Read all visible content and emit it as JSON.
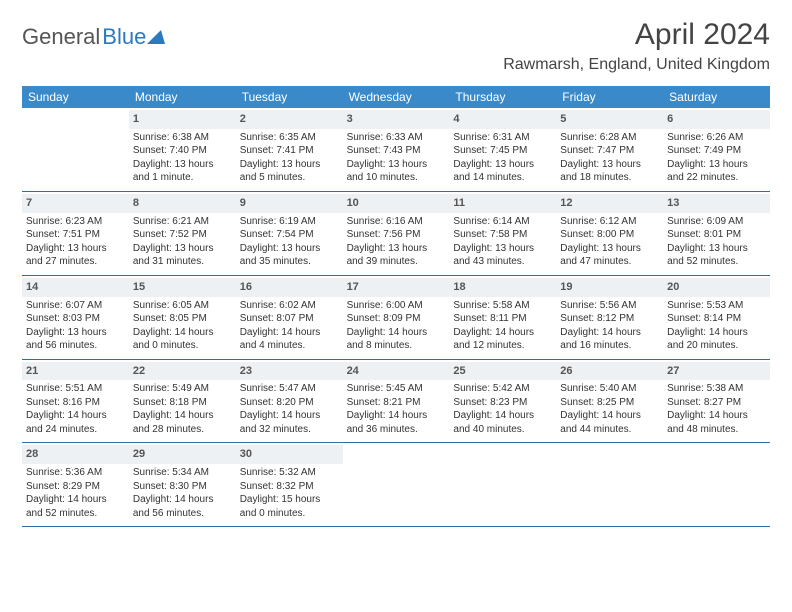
{
  "logo": {
    "word1": "General",
    "word2": "Blue"
  },
  "title": "April 2024",
  "location": "Rawmarsh, England, United Kingdom",
  "daynames": [
    "Sunday",
    "Monday",
    "Tuesday",
    "Wednesday",
    "Thursday",
    "Friday",
    "Saturday"
  ],
  "colors": {
    "header_bg": "#3a8ac9",
    "header_text": "#ffffff",
    "daynum_bg": "#eef1f3",
    "week_border": "#2f6da6",
    "logo_blue": "#2b7ac0"
  },
  "weeks": [
    [
      {
        "day": "",
        "sunrise": "",
        "sunset": "",
        "daylight": ""
      },
      {
        "day": "1",
        "sunrise": "Sunrise: 6:38 AM",
        "sunset": "Sunset: 7:40 PM",
        "daylight": "Daylight: 13 hours and 1 minute."
      },
      {
        "day": "2",
        "sunrise": "Sunrise: 6:35 AM",
        "sunset": "Sunset: 7:41 PM",
        "daylight": "Daylight: 13 hours and 5 minutes."
      },
      {
        "day": "3",
        "sunrise": "Sunrise: 6:33 AM",
        "sunset": "Sunset: 7:43 PM",
        "daylight": "Daylight: 13 hours and 10 minutes."
      },
      {
        "day": "4",
        "sunrise": "Sunrise: 6:31 AM",
        "sunset": "Sunset: 7:45 PM",
        "daylight": "Daylight: 13 hours and 14 minutes."
      },
      {
        "day": "5",
        "sunrise": "Sunrise: 6:28 AM",
        "sunset": "Sunset: 7:47 PM",
        "daylight": "Daylight: 13 hours and 18 minutes."
      },
      {
        "day": "6",
        "sunrise": "Sunrise: 6:26 AM",
        "sunset": "Sunset: 7:49 PM",
        "daylight": "Daylight: 13 hours and 22 minutes."
      }
    ],
    [
      {
        "day": "7",
        "sunrise": "Sunrise: 6:23 AM",
        "sunset": "Sunset: 7:51 PM",
        "daylight": "Daylight: 13 hours and 27 minutes."
      },
      {
        "day": "8",
        "sunrise": "Sunrise: 6:21 AM",
        "sunset": "Sunset: 7:52 PM",
        "daylight": "Daylight: 13 hours and 31 minutes."
      },
      {
        "day": "9",
        "sunrise": "Sunrise: 6:19 AM",
        "sunset": "Sunset: 7:54 PM",
        "daylight": "Daylight: 13 hours and 35 minutes."
      },
      {
        "day": "10",
        "sunrise": "Sunrise: 6:16 AM",
        "sunset": "Sunset: 7:56 PM",
        "daylight": "Daylight: 13 hours and 39 minutes."
      },
      {
        "day": "11",
        "sunrise": "Sunrise: 6:14 AM",
        "sunset": "Sunset: 7:58 PM",
        "daylight": "Daylight: 13 hours and 43 minutes."
      },
      {
        "day": "12",
        "sunrise": "Sunrise: 6:12 AM",
        "sunset": "Sunset: 8:00 PM",
        "daylight": "Daylight: 13 hours and 47 minutes."
      },
      {
        "day": "13",
        "sunrise": "Sunrise: 6:09 AM",
        "sunset": "Sunset: 8:01 PM",
        "daylight": "Daylight: 13 hours and 52 minutes."
      }
    ],
    [
      {
        "day": "14",
        "sunrise": "Sunrise: 6:07 AM",
        "sunset": "Sunset: 8:03 PM",
        "daylight": "Daylight: 13 hours and 56 minutes."
      },
      {
        "day": "15",
        "sunrise": "Sunrise: 6:05 AM",
        "sunset": "Sunset: 8:05 PM",
        "daylight": "Daylight: 14 hours and 0 minutes."
      },
      {
        "day": "16",
        "sunrise": "Sunrise: 6:02 AM",
        "sunset": "Sunset: 8:07 PM",
        "daylight": "Daylight: 14 hours and 4 minutes."
      },
      {
        "day": "17",
        "sunrise": "Sunrise: 6:00 AM",
        "sunset": "Sunset: 8:09 PM",
        "daylight": "Daylight: 14 hours and 8 minutes."
      },
      {
        "day": "18",
        "sunrise": "Sunrise: 5:58 AM",
        "sunset": "Sunset: 8:11 PM",
        "daylight": "Daylight: 14 hours and 12 minutes."
      },
      {
        "day": "19",
        "sunrise": "Sunrise: 5:56 AM",
        "sunset": "Sunset: 8:12 PM",
        "daylight": "Daylight: 14 hours and 16 minutes."
      },
      {
        "day": "20",
        "sunrise": "Sunrise: 5:53 AM",
        "sunset": "Sunset: 8:14 PM",
        "daylight": "Daylight: 14 hours and 20 minutes."
      }
    ],
    [
      {
        "day": "21",
        "sunrise": "Sunrise: 5:51 AM",
        "sunset": "Sunset: 8:16 PM",
        "daylight": "Daylight: 14 hours and 24 minutes."
      },
      {
        "day": "22",
        "sunrise": "Sunrise: 5:49 AM",
        "sunset": "Sunset: 8:18 PM",
        "daylight": "Daylight: 14 hours and 28 minutes."
      },
      {
        "day": "23",
        "sunrise": "Sunrise: 5:47 AM",
        "sunset": "Sunset: 8:20 PM",
        "daylight": "Daylight: 14 hours and 32 minutes."
      },
      {
        "day": "24",
        "sunrise": "Sunrise: 5:45 AM",
        "sunset": "Sunset: 8:21 PM",
        "daylight": "Daylight: 14 hours and 36 minutes."
      },
      {
        "day": "25",
        "sunrise": "Sunrise: 5:42 AM",
        "sunset": "Sunset: 8:23 PM",
        "daylight": "Daylight: 14 hours and 40 minutes."
      },
      {
        "day": "26",
        "sunrise": "Sunrise: 5:40 AM",
        "sunset": "Sunset: 8:25 PM",
        "daylight": "Daylight: 14 hours and 44 minutes."
      },
      {
        "day": "27",
        "sunrise": "Sunrise: 5:38 AM",
        "sunset": "Sunset: 8:27 PM",
        "daylight": "Daylight: 14 hours and 48 minutes."
      }
    ],
    [
      {
        "day": "28",
        "sunrise": "Sunrise: 5:36 AM",
        "sunset": "Sunset: 8:29 PM",
        "daylight": "Daylight: 14 hours and 52 minutes."
      },
      {
        "day": "29",
        "sunrise": "Sunrise: 5:34 AM",
        "sunset": "Sunset: 8:30 PM",
        "daylight": "Daylight: 14 hours and 56 minutes."
      },
      {
        "day": "30",
        "sunrise": "Sunrise: 5:32 AM",
        "sunset": "Sunset: 8:32 PM",
        "daylight": "Daylight: 15 hours and 0 minutes."
      },
      {
        "day": "",
        "sunrise": "",
        "sunset": "",
        "daylight": ""
      },
      {
        "day": "",
        "sunrise": "",
        "sunset": "",
        "daylight": ""
      },
      {
        "day": "",
        "sunrise": "",
        "sunset": "",
        "daylight": ""
      },
      {
        "day": "",
        "sunrise": "",
        "sunset": "",
        "daylight": ""
      }
    ]
  ]
}
